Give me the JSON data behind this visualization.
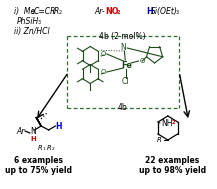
{
  "bg_color": "#ffffff",
  "no2_color": "#cc0000",
  "hsi_color": "#0000cc",
  "nh_color": "#cc0000",
  "nh2_color": "#cc0000",
  "h_color": "#0000cc",
  "box_color": "#2d6e2d",
  "struct_color": "#1a4a1a",
  "text_black": "#000000",
  "product_left_label1": "6 examples",
  "product_left_label2": "up to 75% yield",
  "product_right_label1": "22 examples",
  "product_right_label2": "up to 98% yield",
  "catalyst_label": "4b (2 mol%)",
  "catalyst_name": "4b",
  "dpi": 100,
  "fig_w": 2.17,
  "fig_h": 1.89
}
